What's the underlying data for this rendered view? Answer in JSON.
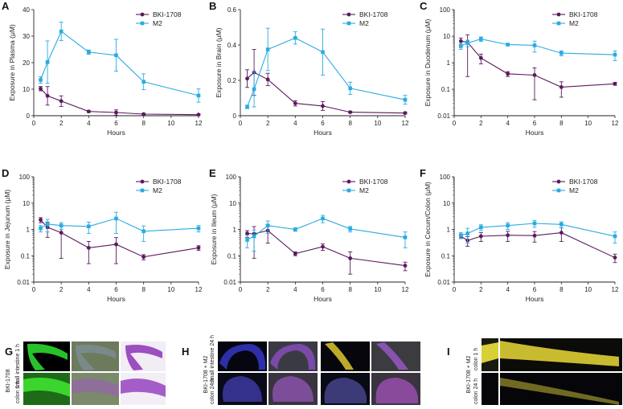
{
  "colors": {
    "bki": "#5b1a5e",
    "m2": "#29abe2"
  },
  "chart_data": [
    {
      "letter": "A",
      "type": "line",
      "scale": "linear",
      "ylabel": "Exposure in Plasma (μM)",
      "xlabel": "Hours",
      "ylim": [
        0,
        40
      ],
      "yticks": [
        0,
        10,
        20,
        30,
        40
      ],
      "xlim": [
        0,
        12
      ],
      "xticks": [
        0,
        2,
        4,
        6,
        8,
        10,
        12
      ],
      "legend": [
        "BKI-1708",
        "M2"
      ],
      "series": [
        {
          "name": "BKI-1708",
          "x": [
            0.5,
            1,
            2,
            4,
            6,
            8,
            12
          ],
          "y": [
            10.2,
            7.5,
            5.5,
            1.6,
            1.2,
            0.6,
            0.4
          ],
          "err": [
            0.8,
            3.5,
            2.0,
            0.4,
            1.0,
            0.3,
            0.2
          ]
        },
        {
          "name": "M2",
          "x": [
            0.5,
            1,
            2,
            4,
            6,
            8,
            12
          ],
          "y": [
            13.5,
            20.2,
            31.8,
            24.0,
            22.8,
            12.8,
            7.6
          ],
          "err": [
            1.2,
            8.0,
            3.5,
            0.8,
            6.0,
            3.0,
            2.5
          ]
        }
      ]
    },
    {
      "letter": "B",
      "type": "line",
      "scale": "linear",
      "ylabel": "Exposure in Brain (μM)",
      "xlabel": "Hours",
      "ylim": [
        0,
        0.6
      ],
      "yticks": [
        0,
        0.2,
        0.4,
        0.6
      ],
      "xlim": [
        0,
        12
      ],
      "xticks": [
        0,
        2,
        4,
        6,
        8,
        10,
        12
      ],
      "legend": [
        "BKI-1708",
        "M2"
      ],
      "series": [
        {
          "name": "BKI-1708",
          "x": [
            0.5,
            1,
            2,
            4,
            6,
            8,
            12
          ],
          "y": [
            0.21,
            0.245,
            0.205,
            0.07,
            0.055,
            0.02,
            0.015
          ],
          "err": [
            0.05,
            0.13,
            0.035,
            0.015,
            0.025,
            0.005,
            0.005
          ]
        },
        {
          "name": "M2",
          "x": [
            0.5,
            1,
            2,
            4,
            6,
            8,
            12
          ],
          "y": [
            0.05,
            0.15,
            0.375,
            0.44,
            0.36,
            0.155,
            0.09
          ],
          "err": [
            0.01,
            0.1,
            0.12,
            0.035,
            0.13,
            0.035,
            0.025
          ]
        }
      ]
    },
    {
      "letter": "C",
      "type": "line",
      "scale": "log",
      "ylabel": "Exposure in Duodenum (μM)",
      "xlabel": "Hours",
      "ylim": [
        0.01,
        100
      ],
      "yticks": [
        "0.01",
        "0.1",
        "1",
        "10",
        "100"
      ],
      "xlim": [
        0,
        12
      ],
      "xticks": [
        0,
        2,
        4,
        6,
        8,
        10,
        12
      ],
      "legend": [
        "BKI-1708",
        "M2"
      ],
      "series": [
        {
          "name": "BKI-1708",
          "x": [
            0.5,
            1,
            2,
            4,
            6,
            8,
            12
          ],
          "y": [
            6.5,
            5.8,
            1.5,
            0.38,
            0.34,
            0.12,
            0.16
          ],
          "err": [
            2.0,
            5.5,
            0.6,
            0.08,
            0.3,
            0.07,
            0.02
          ]
        },
        {
          "name": "M2",
          "x": [
            0.5,
            1,
            2,
            4,
            6,
            8,
            12
          ],
          "y": [
            4.2,
            5.5,
            7.8,
            4.8,
            4.5,
            2.3,
            2.0
          ],
          "err": [
            1.0,
            1.5,
            1.5,
            0.3,
            2.0,
            0.5,
            0.8
          ]
        }
      ]
    },
    {
      "letter": "D",
      "type": "line",
      "scale": "log",
      "ylabel": "Exposure in Jejunum (μM)",
      "xlabel": "Hours",
      "ylim": [
        0.01,
        100
      ],
      "yticks": [
        "0.01",
        "0.1",
        "1",
        "10",
        "100"
      ],
      "xlim": [
        0,
        12
      ],
      "xticks": [
        0,
        2,
        4,
        6,
        8,
        10,
        12
      ],
      "legend": [
        "BKI-1708",
        "M2"
      ],
      "series": [
        {
          "name": "BKI-1708",
          "x": [
            0.5,
            1,
            2,
            4,
            6,
            8,
            12
          ],
          "y": [
            2.3,
            1.2,
            0.75,
            0.2,
            0.27,
            0.09,
            0.2
          ],
          "err": [
            0.5,
            0.7,
            0.67,
            0.15,
            0.22,
            0.02,
            0.04
          ]
        },
        {
          "name": "M2",
          "x": [
            0.5,
            1,
            2,
            4,
            6,
            8,
            12
          ],
          "y": [
            1.1,
            1.6,
            1.4,
            1.3,
            2.6,
            0.85,
            1.1
          ],
          "err": [
            0.3,
            0.8,
            0.4,
            0.6,
            1.9,
            0.5,
            0.3
          ]
        }
      ]
    },
    {
      "letter": "E",
      "type": "line",
      "scale": "log",
      "ylabel": "Exposure in Ileum (μM)",
      "xlabel": "Hours",
      "ylim": [
        0.01,
        100
      ],
      "yticks": [
        "0.01",
        "0.1",
        "1",
        "10",
        "100"
      ],
      "xlim": [
        0,
        12
      ],
      "xticks": [
        0,
        2,
        4,
        6,
        8,
        10,
        12
      ],
      "legend": [
        "BKI-1708",
        "M2"
      ],
      "series": [
        {
          "name": "BKI-1708",
          "x": [
            0.5,
            1,
            2,
            4,
            6,
            8,
            12
          ],
          "y": [
            0.7,
            0.68,
            0.9,
            0.12,
            0.22,
            0.08,
            0.042
          ],
          "err": [
            0.2,
            0.6,
            0.6,
            0.02,
            0.06,
            0.06,
            0.015
          ]
        },
        {
          "name": "M2",
          "x": [
            0.5,
            1,
            2,
            4,
            6,
            8,
            12
          ],
          "y": [
            0.4,
            0.55,
            1.4,
            1.0,
            2.6,
            1.05,
            0.5
          ],
          "err": [
            0.2,
            0.4,
            0.7,
            0.15,
            0.8,
            0.25,
            0.3
          ]
        }
      ]
    },
    {
      "letter": "F",
      "type": "line",
      "scale": "log",
      "ylabel": "Exposure in Cecum/Colon (μM)",
      "xlabel": "Hours",
      "ylim": [
        0.01,
        100
      ],
      "yticks": [
        "0.01",
        "0.1",
        "1",
        "10",
        "100"
      ],
      "xlim": [
        0,
        12
      ],
      "xticks": [
        0,
        2,
        4,
        6,
        8,
        10,
        12
      ],
      "legend": [
        "BKI-1708",
        "M2"
      ],
      "series": [
        {
          "name": "BKI-1708",
          "x": [
            0.5,
            1,
            2,
            4,
            6,
            8,
            12
          ],
          "y": [
            0.55,
            0.38,
            0.55,
            0.6,
            0.58,
            0.75,
            0.085
          ],
          "err": [
            0.1,
            0.15,
            0.2,
            0.25,
            0.25,
            0.4,
            0.03
          ]
        },
        {
          "name": "M2",
          "x": [
            0.5,
            1,
            2,
            4,
            6,
            8,
            12
          ],
          "y": [
            0.6,
            0.7,
            1.2,
            1.4,
            1.7,
            1.55,
            0.55
          ],
          "err": [
            0.15,
            0.4,
            0.3,
            0.4,
            0.5,
            0.4,
            0.25
          ]
        }
      ]
    }
  ],
  "image_panels": {
    "G": {
      "letter": "G",
      "group": "BKI-1708",
      "rows": [
        "small intestine 1 h",
        "colon 1 h"
      ]
    },
    "H": {
      "letter": "H",
      "group": "BKI-1708 + M2",
      "rows": [
        "small intestine 24 h",
        "colon 24 h"
      ]
    },
    "I": {
      "letter": "I",
      "group": "BKI-1708 + M2",
      "rows": [
        "colon 1 h",
        "colon 24 h"
      ]
    }
  }
}
